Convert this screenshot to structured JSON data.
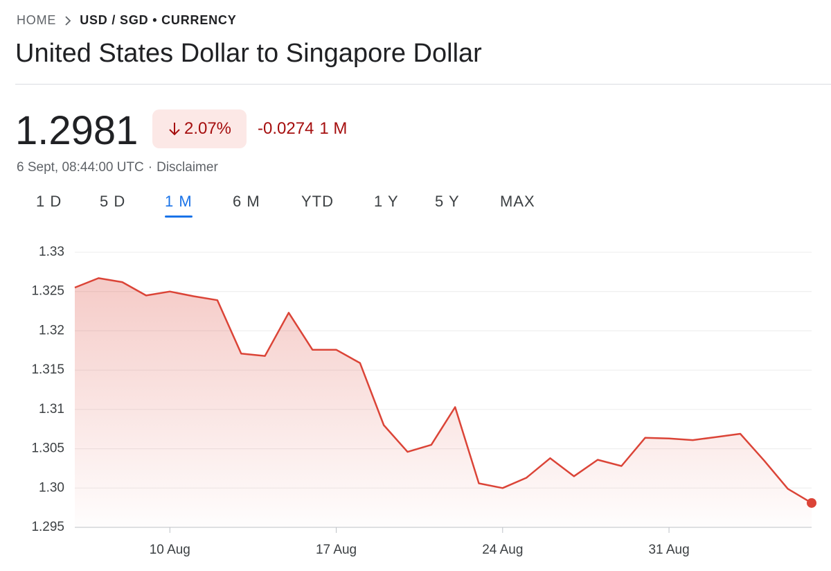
{
  "breadcrumb": {
    "home": "HOME",
    "current": "USD / SGD • CURRENCY"
  },
  "title": "United States Dollar to Singapore Dollar",
  "price": "1.2981",
  "change_percent": "2.07%",
  "change_absolute": "-0.0274",
  "change_period": "1 M",
  "timestamp": "6 Sept, 08:44:00 UTC",
  "separator": "·",
  "disclaimer": "Disclaimer",
  "tabs": [
    "1 D",
    "5 D",
    "1 M",
    "6 M",
    "YTD",
    "1 Y",
    "5 Y",
    "MAX"
  ],
  "active_tab": 2,
  "chart_data": {
    "type": "line",
    "color": "#db4437",
    "categories": [
      null,
      null,
      null,
      null,
      "10 Aug",
      null,
      null,
      null,
      null,
      null,
      null,
      "17 Aug",
      null,
      null,
      null,
      null,
      null,
      null,
      "24 Aug",
      null,
      null,
      null,
      null,
      null,
      null,
      "31 Aug",
      null,
      null,
      null,
      null,
      null,
      null
    ],
    "values": [
      1.3255,
      1.3267,
      1.3262,
      1.3245,
      1.325,
      1.3244,
      1.3239,
      1.3171,
      1.3168,
      1.3223,
      1.3176,
      1.3176,
      1.3159,
      1.308,
      1.3046,
      1.3055,
      1.3103,
      1.3006,
      1.3,
      1.3013,
      1.3038,
      1.3015,
      1.3036,
      1.3028,
      1.3064,
      1.3063,
      1.3061,
      1.3065,
      1.3069,
      1.3035,
      1.2999,
      1.2981
    ],
    "ylim": [
      1.295,
      1.33
    ],
    "yticks": [
      1.295,
      {
        "value": 1.3,
        "label": "1.30"
      },
      1.305,
      1.31,
      1.315,
      1.32,
      1.325,
      1.33
    ],
    "grid": true
  }
}
